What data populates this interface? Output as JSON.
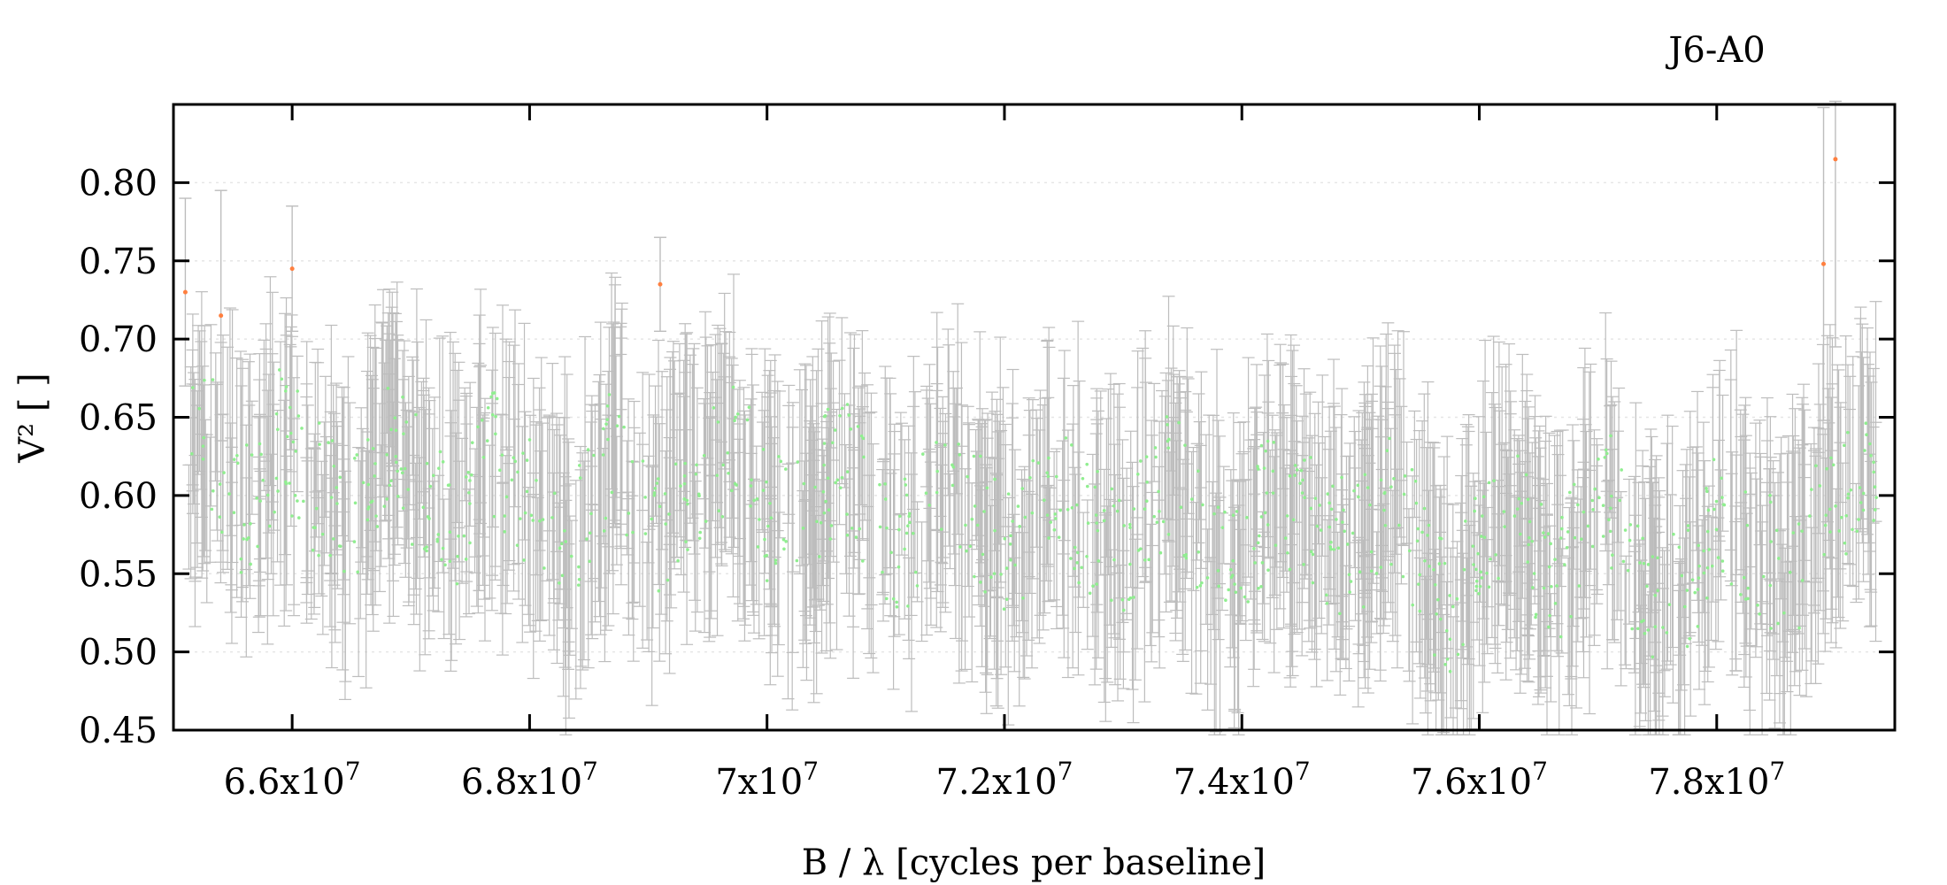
{
  "chart_data": {
    "type": "scatter",
    "title": "J6-A0",
    "xlabel": "B / λ [cycles per baseline]",
    "ylabel": "V² [ ]",
    "xlim": [
      65000000,
      79500000
    ],
    "ylim": [
      0.45,
      0.85
    ],
    "x_ticks": [
      {
        "value": 66000000,
        "label": "6.6x10",
        "exp": "7"
      },
      {
        "value": 68000000,
        "label": "6.8x10",
        "exp": "7"
      },
      {
        "value": 70000000,
        "label": "7x10",
        "exp": "7"
      },
      {
        "value": 72000000,
        "label": "7.2x10",
        "exp": "7"
      },
      {
        "value": 74000000,
        "label": "7.4x10",
        "exp": "7"
      },
      {
        "value": 76000000,
        "label": "7.6x10",
        "exp": "7"
      },
      {
        "value": 78000000,
        "label": "7.8x10",
        "exp": "7"
      }
    ],
    "y_ticks": [
      {
        "value": 0.45,
        "label": "0.45"
      },
      {
        "value": 0.5,
        "label": "0.50"
      },
      {
        "value": 0.55,
        "label": "0.55"
      },
      {
        "value": 0.6,
        "label": "0.60"
      },
      {
        "value": 0.65,
        "label": "0.65"
      },
      {
        "value": 0.7,
        "label": "0.70"
      },
      {
        "value": 0.75,
        "label": "0.75"
      },
      {
        "value": 0.8,
        "label": "0.80"
      }
    ],
    "grid": {
      "horizontal": true,
      "vertical": false,
      "style": "dotted"
    },
    "colors": {
      "errorbar": "#bdbdbd",
      "model_point": "#90ee90",
      "data_point": "#ff7f3f",
      "grid": "#e6e6e6",
      "frame": "#000000"
    },
    "trend": [
      [
        65300000,
        0.635
      ],
      [
        65600000,
        0.585
      ],
      [
        65900000,
        0.64
      ],
      [
        66200000,
        0.605
      ],
      [
        66500000,
        0.58
      ],
      [
        66800000,
        0.635
      ],
      [
        67100000,
        0.6
      ],
      [
        67400000,
        0.585
      ],
      [
        67700000,
        0.63
      ],
      [
        68000000,
        0.595
      ],
      [
        68300000,
        0.565
      ],
      [
        68700000,
        0.625
      ],
      [
        69000000,
        0.58
      ],
      [
        69300000,
        0.59
      ],
      [
        69700000,
        0.64
      ],
      [
        70000000,
        0.59
      ],
      [
        70300000,
        0.575
      ],
      [
        70600000,
        0.625
      ],
      [
        70900000,
        0.58
      ],
      [
        71200000,
        0.57
      ],
      [
        71500000,
        0.61
      ],
      [
        71800000,
        0.585
      ],
      [
        72100000,
        0.565
      ],
      [
        72400000,
        0.61
      ],
      [
        72700000,
        0.58
      ],
      [
        73000000,
        0.56
      ],
      [
        73400000,
        0.615
      ],
      [
        73700000,
        0.57
      ],
      [
        74000000,
        0.565
      ],
      [
        74300000,
        0.605
      ],
      [
        74700000,
        0.57
      ],
      [
        75000000,
        0.565
      ],
      [
        75300000,
        0.6
      ],
      [
        75600000,
        0.545
      ],
      [
        75800000,
        0.52
      ],
      [
        76000000,
        0.58
      ],
      [
        76300000,
        0.59
      ],
      [
        76600000,
        0.54
      ],
      [
        76900000,
        0.575
      ],
      [
        77100000,
        0.6
      ],
      [
        77400000,
        0.535
      ],
      [
        77700000,
        0.53
      ],
      [
        78000000,
        0.595
      ],
      [
        78300000,
        0.57
      ],
      [
        78600000,
        0.54
      ],
      [
        78900000,
        0.595
      ],
      [
        79200000,
        0.61
      ]
    ],
    "outliers": [
      {
        "x": 65100000,
        "y": 0.73,
        "err": 0.06
      },
      {
        "x": 65400000,
        "y": 0.715,
        "err": 0.08
      },
      {
        "x": 66000000,
        "y": 0.745,
        "err": 0.04
      },
      {
        "x": 69100000,
        "y": 0.735,
        "err": 0.03
      },
      {
        "x": 78900000,
        "y": 0.748,
        "err": 0.1
      },
      {
        "x": 79000000,
        "y": 0.815,
        "err": 0.12
      }
    ]
  }
}
